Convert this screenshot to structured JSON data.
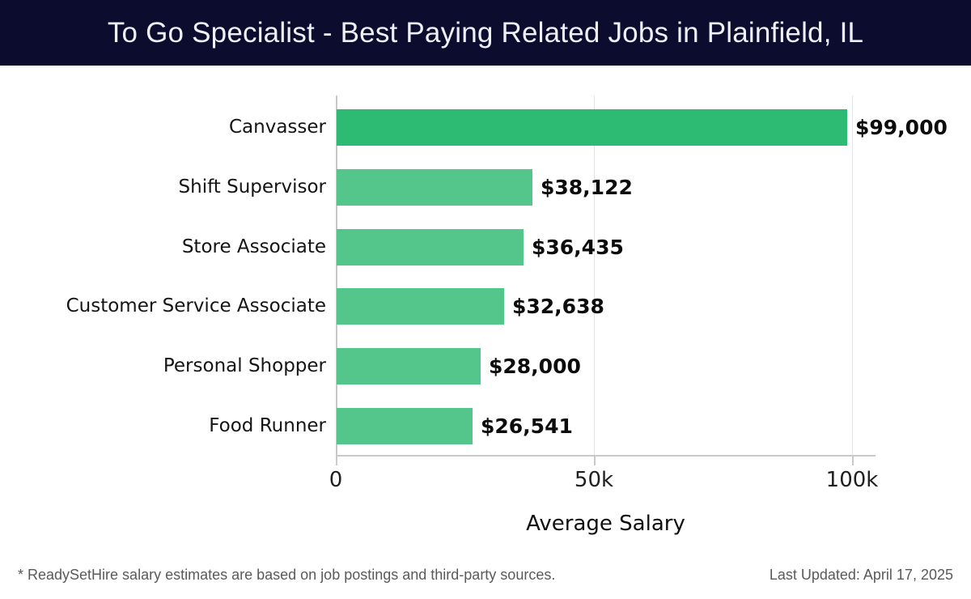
{
  "chart_data": {
    "type": "bar",
    "orientation": "horizontal",
    "title": "To Go Specialist - Best Paying Related Jobs in Plainfield, IL",
    "categories": [
      "Canvasser",
      "Shift Supervisor",
      "Store Associate",
      "Customer Service Associate",
      "Personal Shopper",
      "Food Runner"
    ],
    "values": [
      99000,
      38122,
      36435,
      32638,
      28000,
      26541
    ],
    "value_labels": [
      "$99,000",
      "$38,122",
      "$36,435",
      "$32,638",
      "$28,000",
      "$26,541"
    ],
    "xlabel": "Average Salary",
    "ylabel": "",
    "xlim": [
      0,
      100000
    ],
    "xticks": [
      {
        "value": 0,
        "label": "0"
      },
      {
        "value": 50000,
        "label": "50k"
      },
      {
        "value": 100000,
        "label": "100k"
      }
    ],
    "grid": "vertical",
    "legend": false,
    "highlight_index": 0
  },
  "colors": {
    "header_bg": "#0b0c2e",
    "header_text": "#eef0f6",
    "bar_highlight": "#2dba73",
    "bar_default": "#54c58b",
    "gridline": "#e4e4e4",
    "axis": "#c9c9c9"
  },
  "footer": {
    "note": "* ReadySetHire salary estimates are based on job postings and third-party sources.",
    "last_updated": "Last Updated: April 17, 2025"
  }
}
